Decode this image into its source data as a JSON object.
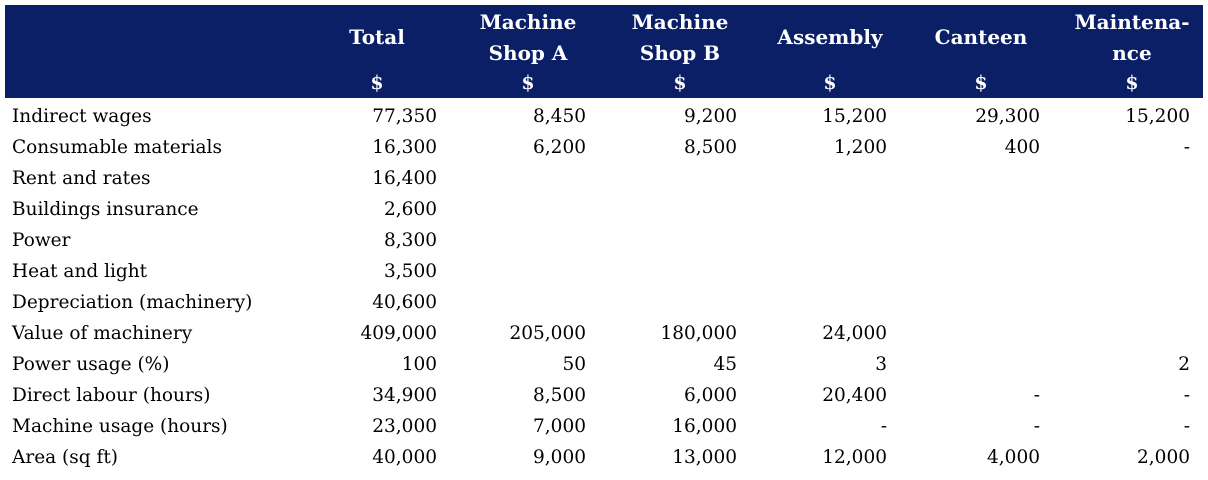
{
  "table": {
    "header": [
      [
        "Total"
      ],
      [
        "Machine",
        "Shop A"
      ],
      [
        "Machine",
        "Shop B"
      ],
      [
        "Assembly"
      ],
      [
        "Canteen"
      ],
      [
        "Maintena-",
        "nce"
      ]
    ],
    "units": [
      "$",
      "$",
      "$",
      "$",
      "$",
      "$"
    ],
    "rows": [
      [
        "Indirect wages",
        "77,350",
        "8,450",
        "9,200",
        "15,200",
        "29,300",
        "15,200"
      ],
      [
        "Consumable materials",
        "16,300",
        "6,200",
        "8,500",
        "1,200",
        "400",
        "-"
      ],
      [
        "Rent and rates",
        "16,400",
        null,
        null,
        null,
        null,
        null
      ],
      [
        "Buildings insurance",
        "2,600",
        null,
        null,
        null,
        null,
        null
      ],
      [
        "Power",
        "8,300",
        null,
        null,
        null,
        null,
        null
      ],
      [
        "Heat and light",
        "3,500",
        null,
        null,
        null,
        null,
        null
      ],
      [
        "Depreciation (machinery)",
        "40,600",
        null,
        null,
        null,
        null,
        null
      ],
      [
        "Value of machinery",
        "409,000",
        "205,000",
        "180,000",
        "24,000",
        null,
        null
      ],
      [
        "Power usage (%)",
        "100",
        "50",
        "45",
        "3",
        null,
        "2"
      ],
      [
        "Direct labour (hours)",
        "34,900",
        "8,500",
        "6,000",
        "20,400",
        "-",
        "-"
      ],
      [
        "Machine usage (hours)",
        "23,000",
        "7,000",
        "16,000",
        "-",
        "-",
        "-"
      ],
      [
        "Area (sq ft)",
        "40,000",
        "9,000",
        "13,000",
        "12,000",
        "4,000",
        "2,000"
      ]
    ]
  }
}
